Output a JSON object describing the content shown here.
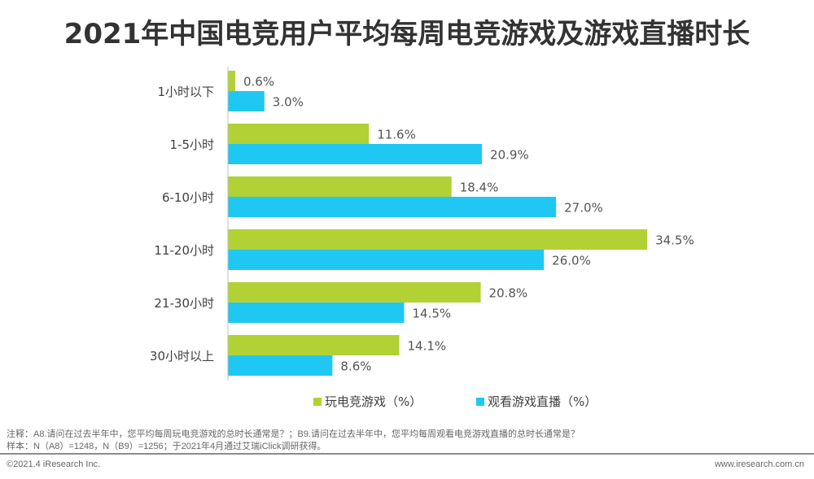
{
  "chart_data": {
    "type": "bar",
    "orientation": "horizontal",
    "title": "2021年中国电竞用户平均每周电竞游戏及游戏直播时长",
    "categories": [
      "1小时以下",
      "1-5小时",
      "6-10小时",
      "11-20小时",
      "21-30小时",
      "30小时以上"
    ],
    "series": [
      {
        "name": "玩电竞游戏（%）",
        "color": "#b1d135",
        "values": [
          0.6,
          11.6,
          18.4,
          34.5,
          20.8,
          14.1
        ],
        "labels": [
          "0.6%",
          "11.6%",
          "18.4%",
          "34.5%",
          "20.8%",
          "14.1%"
        ]
      },
      {
        "name": "观看游戏直播（%）",
        "color": "#1fc8f2",
        "values": [
          3.0,
          20.9,
          27.0,
          26.0,
          14.5,
          8.6
        ],
        "labels": [
          "3.0%",
          "20.9%",
          "27.0%",
          "26.0%",
          "14.5%",
          "8.6%"
        ]
      }
    ],
    "legend": "bottom",
    "grid": false
  },
  "notes": {
    "line1": "注释：A8.请问在过去半年中，您平均每周玩电竞游戏的总时长通常是？；B9.请问在过去半年中，您平均每周观看电竞游戏直播的总时长通常是？",
    "line2": "样本：N（A8）=1248，N（B9）=1256；于2021年4月通过艾瑞iClick调研获得。"
  },
  "footer": {
    "copyright": "©2021.4 iResearch Inc.",
    "url": "www.iresearch.com.cn"
  }
}
